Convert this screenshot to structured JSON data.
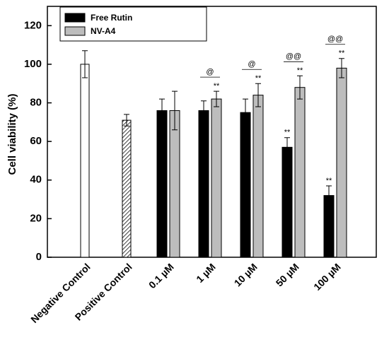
{
  "chart_data": {
    "type": "bar",
    "ylabel": "Cell viability (%)",
    "categories": [
      "Negative Control",
      "Positive Control",
      "0.1 µM",
      "1 µM",
      "10 µM",
      "50 µM",
      "100 µM"
    ],
    "controls": {
      "values": [
        100,
        71
      ],
      "errors": [
        7,
        3
      ]
    },
    "series": [
      {
        "name": "Free Rutin",
        "color": "#000000",
        "values": [
          null,
          null,
          76,
          76,
          75,
          57,
          32
        ],
        "errors": [
          null,
          null,
          6,
          5,
          7,
          5,
          5
        ],
        "markers": [
          null,
          null,
          null,
          null,
          null,
          "**",
          "**"
        ]
      },
      {
        "name": "NV-A4",
        "color": "#bdbdbd",
        "values": [
          null,
          null,
          76,
          82,
          84,
          88,
          98
        ],
        "errors": [
          null,
          null,
          10,
          4,
          6,
          6,
          5
        ],
        "markers": [
          null,
          null,
          null,
          "**",
          "**",
          "**",
          "**"
        ]
      }
    ],
    "pair_markers": [
      null,
      null,
      null,
      "@",
      "@",
      "@@",
      "@@"
    ],
    "ylim": [
      0,
      130
    ],
    "yticks": [
      0,
      20,
      40,
      60,
      80,
      100,
      120
    ],
    "legend": "upper left"
  }
}
